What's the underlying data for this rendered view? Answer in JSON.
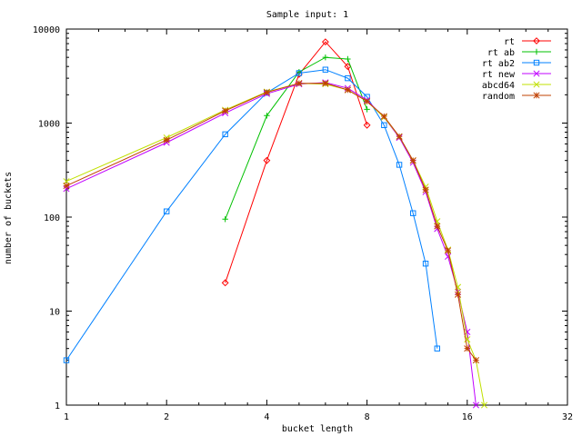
{
  "chart_data": {
    "type": "line",
    "title": "Sample input: 1",
    "xlabel": "bucket length",
    "ylabel": "number of buckets",
    "xscale": "log2",
    "yscale": "log10",
    "xlim": [
      1,
      32
    ],
    "ylim": [
      1,
      10000
    ],
    "xticks": [
      1,
      2,
      4,
      8,
      16,
      32
    ],
    "xtick_labels": [
      "1",
      "2",
      "4",
      "8",
      "16",
      "32"
    ],
    "yticks": [
      1,
      10,
      100,
      1000,
      10000
    ],
    "ytick_labels": [
      "1",
      "10",
      "100",
      "1000",
      "10000"
    ],
    "grid": false,
    "legend_position": "top-right",
    "series": [
      {
        "name": "rt",
        "color": "#ff0000",
        "marker": "diamond",
        "x": [
          3,
          4,
          5,
          6,
          7,
          8
        ],
        "y": [
          20,
          400,
          3300,
          7300,
          4000,
          950
        ]
      },
      {
        "name": "rt ab",
        "color": "#00c000",
        "marker": "plus",
        "x": [
          3,
          4,
          5,
          6,
          7,
          8
        ],
        "y": [
          95,
          1200,
          3500,
          5000,
          4800,
          1400
        ]
      },
      {
        "name": "rt ab2",
        "color": "#0080ff",
        "marker": "square",
        "x": [
          1,
          2,
          3,
          4,
          5,
          6,
          7,
          8,
          9,
          10,
          11,
          12,
          13
        ],
        "y": [
          3,
          115,
          760,
          2100,
          3400,
          3700,
          3000,
          1900,
          950,
          360,
          110,
          32,
          4
        ]
      },
      {
        "name": "rt new",
        "color": "#c000ff",
        "marker": "x",
        "x": [
          1,
          2,
          3,
          4,
          5,
          6,
          7,
          8,
          9,
          10,
          11,
          12,
          13,
          14,
          15,
          16,
          17
        ],
        "y": [
          200,
          620,
          1280,
          2050,
          2600,
          2700,
          2350,
          1750,
          1150,
          700,
          380,
          185,
          75,
          38,
          16,
          6,
          1
        ]
      },
      {
        "name": "abcd64",
        "color": "#c0e000",
        "marker": "x",
        "x": [
          1,
          2,
          3,
          4,
          5,
          6,
          7,
          8,
          9,
          10,
          11,
          12,
          13,
          14,
          15,
          16,
          17,
          18
        ],
        "y": [
          240,
          700,
          1380,
          2150,
          2650,
          2600,
          2250,
          1700,
          1150,
          720,
          400,
          210,
          90,
          45,
          18,
          5,
          3,
          1
        ]
      },
      {
        "name": "random",
        "color": "#c04000",
        "marker": "star",
        "x": [
          1,
          2,
          3,
          4,
          5,
          6,
          7,
          8,
          9,
          10,
          11,
          12,
          13,
          14,
          15,
          16,
          17
        ],
        "y": [
          215,
          660,
          1350,
          2120,
          2650,
          2650,
          2250,
          1700,
          1180,
          720,
          400,
          195,
          80,
          44,
          15,
          4,
          3
        ]
      }
    ]
  }
}
